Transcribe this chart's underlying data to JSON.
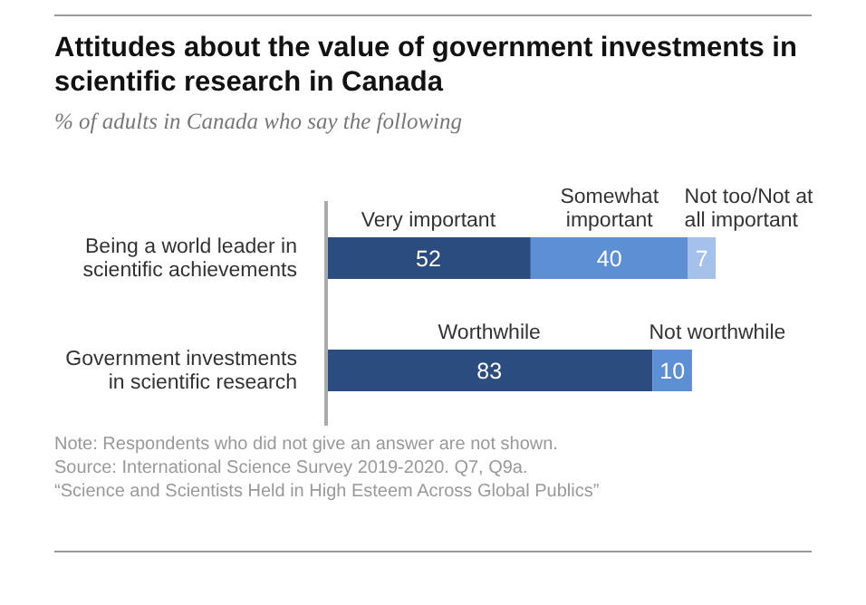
{
  "chart_data": {
    "type": "bar",
    "orientation": "horizontal",
    "stacked": true,
    "title": "Attitudes about the value of government investments in scientific research in Canada",
    "subtitle": "% of adults in Canada who say the following",
    "categories": [
      "Being a world leader in scientific achievements",
      "Government investments in scientific research"
    ],
    "series": [
      {
        "name": "Very important",
        "color": "#2b4c7e",
        "values": [
          52,
          null
        ]
      },
      {
        "name": "Somewhat important",
        "color": "#5d8fd5",
        "values": [
          40,
          null
        ]
      },
      {
        "name": "Not too/Not at all important",
        "color": "#a3c1ea",
        "values": [
          7,
          null
        ]
      },
      {
        "name": "Worthwhile",
        "color": "#2b4c7e",
        "values": [
          null,
          83
        ]
      },
      {
        "name": "Not worthwhile",
        "color": "#5d8fd5",
        "values": [
          null,
          10
        ]
      }
    ],
    "data_labels": true,
    "annotations": [
      "Note: Respondents who did not give an answer are not shown.",
      "Source: International Science Survey 2019-2020. Q7, Q9a.",
      "“Science and Scientists Held in High Esteem Across Global Publics”"
    ]
  }
}
